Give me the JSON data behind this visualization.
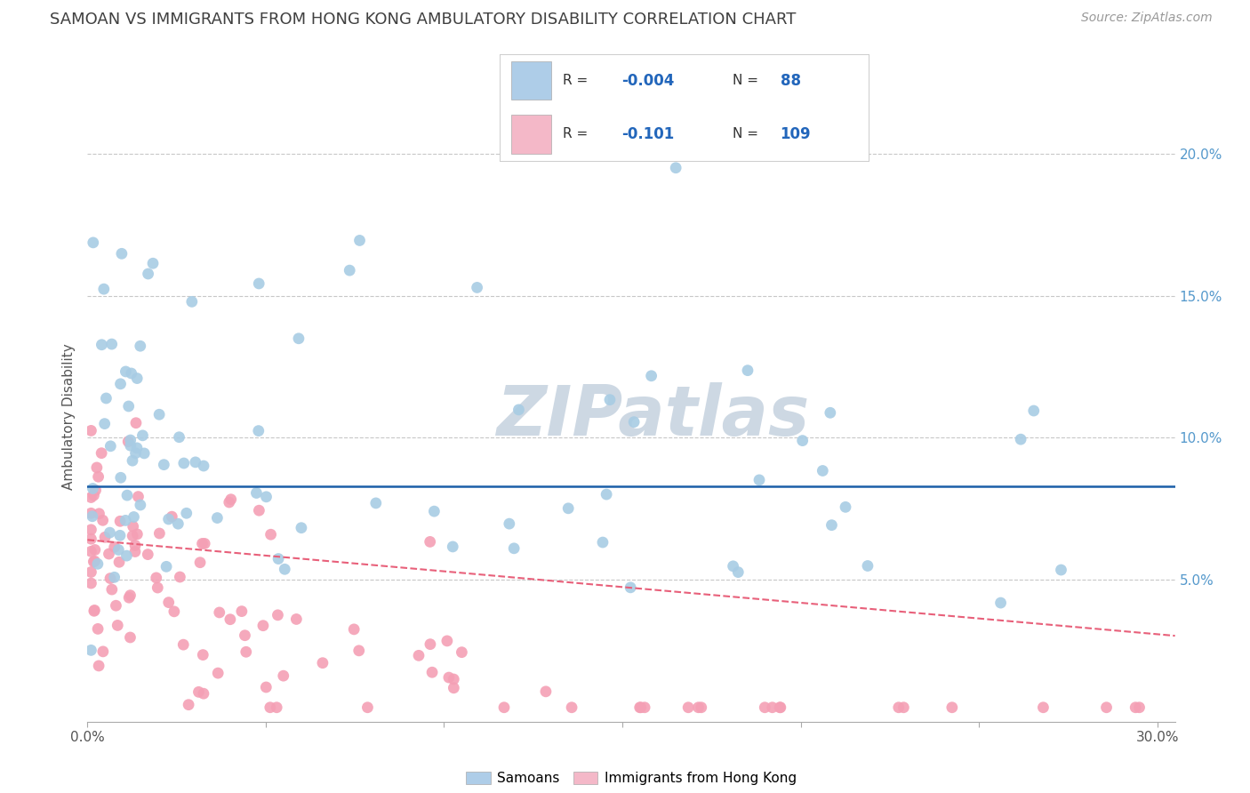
{
  "title": "SAMOAN VS IMMIGRANTS FROM HONG KONG AMBULATORY DISABILITY CORRELATION CHART",
  "source": "Source: ZipAtlas.com",
  "ylabel": "Ambulatory Disability",
  "xlim": [
    0.0,
    0.305
  ],
  "ylim": [
    0.0,
    0.215
  ],
  "yticks": [
    0.05,
    0.1,
    0.15,
    0.2
  ],
  "yticklabels": [
    "5.0%",
    "10.0%",
    "15.0%",
    "20.0%"
  ],
  "xticks": [
    0.0,
    0.05,
    0.1,
    0.15,
    0.2,
    0.25,
    0.3
  ],
  "xticklabels": [
    "0.0%",
    "",
    "",
    "",
    "",
    "",
    "30.0%"
  ],
  "legend_R_samoan": "-0.004",
  "legend_N_samoan": "88",
  "legend_R_hk": "-0.101",
  "legend_N_hk": "109",
  "blue_dot_color": "#a8cce4",
  "pink_dot_color": "#f4a0b5",
  "blue_line_color": "#1a5ea8",
  "pink_line_color": "#e8607a",
  "blue_legend_color": "#aecde8",
  "pink_legend_color": "#f4b8c8",
  "watermark": "ZIPatlas",
  "background_color": "#ffffff",
  "grid_color": "#c8c8c8",
  "title_color": "#404040",
  "right_tick_color": "#5599cc",
  "title_fontsize": 13,
  "source_fontsize": 10,
  "axis_fontsize": 11,
  "legend_box_color": "#cccccc"
}
